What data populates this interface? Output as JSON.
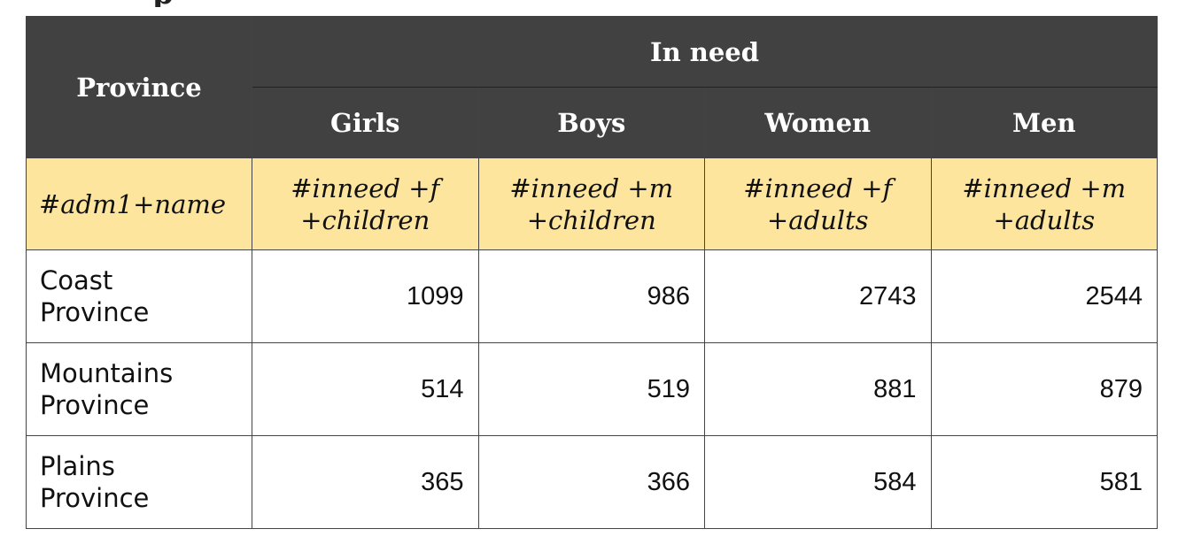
{
  "cut_text": "p",
  "table": {
    "header": {
      "province": "Province",
      "group": "In need",
      "columns": [
        "Girls",
        "Boys",
        "Women",
        "Men"
      ]
    },
    "hxl_tags": {
      "province": "#adm1+name",
      "columns": [
        [
          "#inneed +f",
          "+children"
        ],
        [
          "#inneed +m",
          "+children"
        ],
        [
          "#inneed +f",
          "+adults"
        ],
        [
          "#inneed +m",
          "+adults"
        ]
      ]
    },
    "rows": [
      {
        "province": [
          "Coast",
          "Province"
        ],
        "values": [
          "1099",
          "986",
          "2743",
          "2544"
        ]
      },
      {
        "province": [
          "Mountains",
          "Province"
        ],
        "values": [
          "514",
          "519",
          "881",
          "879"
        ]
      },
      {
        "province": [
          "Plains",
          "Province"
        ],
        "values": [
          "365",
          "366",
          "584",
          "581"
        ]
      }
    ]
  }
}
